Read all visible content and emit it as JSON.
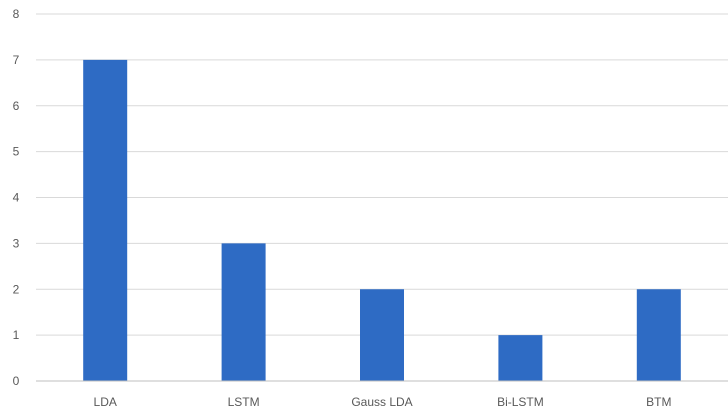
{
  "chart_data": {
    "type": "bar",
    "title": "",
    "xlabel": "",
    "ylabel": "",
    "categories": [
      "LDA",
      "LSTM",
      "Gauss LDA",
      "Bi-LSTM",
      "BTM"
    ],
    "values": [
      7,
      3,
      2,
      1,
      2
    ],
    "ylim": [
      0,
      8
    ],
    "yticks": [
      0,
      1,
      2,
      3,
      4,
      5,
      6,
      7,
      8
    ],
    "grid": true,
    "legend": "none",
    "colors": {
      "bar": "#2e6bc4",
      "grid": "#d9d9d9",
      "axis": "#bfbfbf",
      "tick_text": "#595959"
    }
  }
}
